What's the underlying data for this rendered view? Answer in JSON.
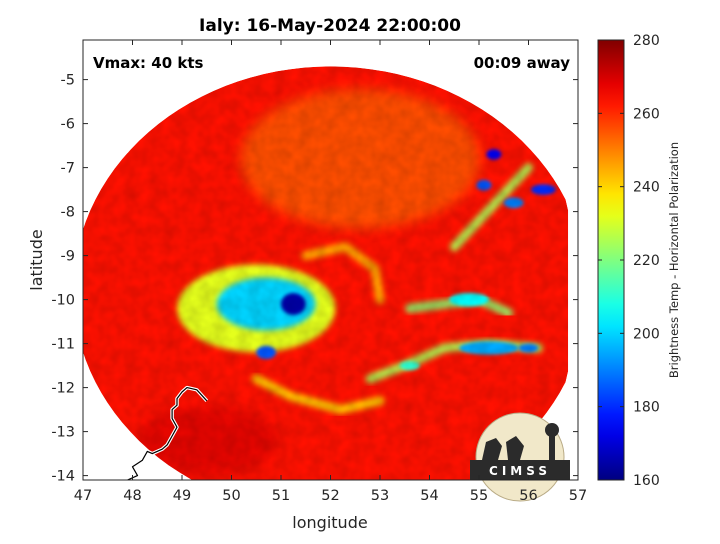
{
  "chart_data": {
    "type": "heatmap",
    "title": "Ialy: 16-May-2024 22:00:00",
    "xlabel": "longitude",
    "ylabel": "latitude",
    "xlim": [
      47,
      57
    ],
    "ylim": [
      -14.1,
      -4.1
    ],
    "y_inverted": true,
    "x_ticks": [
      47,
      48,
      49,
      50,
      51,
      52,
      53,
      54,
      55,
      56,
      57
    ],
    "x_tick_labels": [
      "47",
      "48",
      "49",
      "50",
      "51",
      "52",
      "53",
      "54",
      "55",
      "56",
      "57"
    ],
    "y_ticks": [
      -5,
      -6,
      -7,
      -8,
      -9,
      -10,
      -11,
      -12,
      -13,
      -14
    ],
    "y_tick_labels": [
      "-5",
      "-6",
      "-7",
      "-8",
      "-9",
      "-10",
      "-11",
      "-12",
      "-13",
      "-14"
    ],
    "annotations": {
      "vmax": "Vmax: 40 kts",
      "time_away": "00:09 away"
    },
    "colorbar": {
      "label": "Brightness Temp - Horizontal Polarization",
      "range": [
        160,
        280
      ],
      "ticks": [
        160,
        180,
        200,
        220,
        240,
        260,
        280
      ],
      "tick_labels": [
        "160",
        "180",
        "200",
        "220",
        "240",
        "260",
        "280"
      ],
      "colormap": "jet"
    },
    "swath": {
      "center_lon": 52.0,
      "center_lat": -9.8,
      "radius_lon": 5.2,
      "radius_lat": 5.1,
      "background_temp": 263
    },
    "features": [
      {
        "name": "warm eye core",
        "lon": 51.25,
        "lat": -10.1,
        "r_lon": 0.25,
        "r_lat": 0.25,
        "temp": 165
      },
      {
        "name": "cold rain band core",
        "lon": 50.7,
        "lat": -10.1,
        "r_lon": 1.0,
        "r_lat": 0.6,
        "temp": 200
      },
      {
        "name": "central convection",
        "lon": 50.5,
        "lat": -10.2,
        "r_lon": 1.6,
        "r_lat": 1.0,
        "temp": 232
      },
      {
        "name": "rainband cell",
        "lon": 50.7,
        "lat": -11.2,
        "r_lon": 0.2,
        "r_lat": 0.15,
        "temp": 185
      },
      {
        "name": "band cell east",
        "lon": 55.3,
        "lat": -6.7,
        "r_lon": 0.15,
        "r_lat": 0.12,
        "temp": 175
      },
      {
        "name": "band cell east",
        "lon": 55.1,
        "lat": -7.4,
        "r_lon": 0.15,
        "r_lat": 0.12,
        "temp": 185
      },
      {
        "name": "band cell east",
        "lon": 56.3,
        "lat": -7.5,
        "r_lon": 0.25,
        "r_lat": 0.12,
        "temp": 180
      },
      {
        "name": "band cell east",
        "lon": 55.7,
        "lat": -7.8,
        "r_lon": 0.2,
        "r_lat": 0.12,
        "temp": 190
      },
      {
        "name": "band cell",
        "lon": 54.8,
        "lat": -10.0,
        "r_lon": 0.4,
        "r_lat": 0.15,
        "temp": 205
      },
      {
        "name": "band cell",
        "lon": 55.2,
        "lat": -11.1,
        "r_lon": 0.6,
        "r_lat": 0.15,
        "temp": 195
      },
      {
        "name": "band cell",
        "lon": 56.0,
        "lat": -11.1,
        "r_lon": 0.2,
        "r_lat": 0.1,
        "temp": 190
      },
      {
        "name": "band cell",
        "lon": 53.6,
        "lat": -11.5,
        "r_lon": 0.2,
        "r_lat": 0.1,
        "temp": 210
      }
    ],
    "bands": [
      {
        "name": "outer band NE",
        "points": [
          [
            54.5,
            -8.8
          ],
          [
            55.0,
            -8.2
          ],
          [
            55.5,
            -7.6
          ],
          [
            56.0,
            -7.0
          ]
        ],
        "temp": 225
      },
      {
        "name": "outer band E",
        "points": [
          [
            53.6,
            -10.2
          ],
          [
            54.3,
            -10.1
          ],
          [
            55.0,
            -10.0
          ],
          [
            55.6,
            -10.3
          ]
        ],
        "temp": 222
      },
      {
        "name": "outer band SE",
        "points": [
          [
            52.8,
            -11.8
          ],
          [
            53.5,
            -11.5
          ],
          [
            54.3,
            -11.1
          ],
          [
            55.2,
            -11.0
          ],
          [
            56.2,
            -11.1
          ]
        ],
        "temp": 225
      },
      {
        "name": "inner band S",
        "points": [
          [
            50.5,
            -11.8
          ],
          [
            51.2,
            -12.2
          ],
          [
            52.2,
            -12.5
          ],
          [
            53.0,
            -12.3
          ]
        ],
        "temp": 240
      },
      {
        "name": "inner spiral",
        "points": [
          [
            51.5,
            -9.0
          ],
          [
            52.3,
            -8.8
          ],
          [
            52.9,
            -9.3
          ],
          [
            53.0,
            -10.0
          ]
        ],
        "temp": 244
      }
    ],
    "coastline": [
      [
        49.5,
        -12.3
      ],
      [
        49.3,
        -12.05
      ],
      [
        49.1,
        -12.0
      ],
      [
        49.0,
        -12.1
      ],
      [
        48.9,
        -12.25
      ],
      [
        48.9,
        -12.4
      ],
      [
        48.8,
        -12.5
      ],
      [
        48.8,
        -12.7
      ],
      [
        48.9,
        -12.9
      ],
      [
        48.8,
        -13.1
      ],
      [
        48.7,
        -13.3
      ],
      [
        48.6,
        -13.4
      ],
      [
        48.4,
        -13.5
      ],
      [
        48.3,
        -13.45
      ],
      [
        48.2,
        -13.65
      ],
      [
        48.0,
        -13.8
      ],
      [
        48.1,
        -14.0
      ],
      [
        47.9,
        -14.1
      ]
    ],
    "logo": {
      "text": "CIMSS"
    }
  }
}
